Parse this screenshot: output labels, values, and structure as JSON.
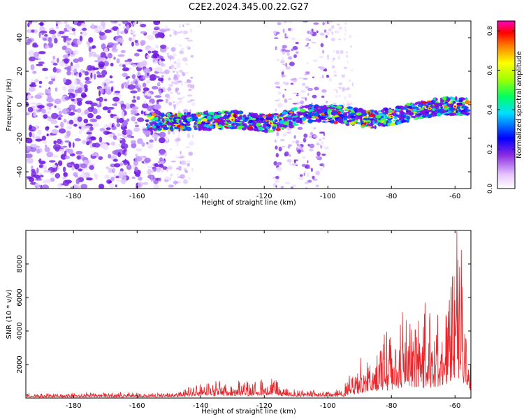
{
  "title": "C2E2.2024.345.00.22.G27",
  "chart_data": [
    {
      "type": "heatmap",
      "xlabel": "Height of straight line (km)",
      "ylabel": "Frequency (Hz)",
      "xlim": [
        -195,
        -55
      ],
      "ylim": [
        -50,
        50
      ],
      "xticks": [
        -180,
        -160,
        -140,
        -120,
        -100,
        -80,
        -60
      ],
      "yticks": [
        -40,
        -20,
        0,
        20,
        40
      ],
      "colorbar": {
        "label": "Normalized spectral amplitude",
        "range": [
          0,
          0.85
        ],
        "ticks": [
          0.0,
          0.2,
          0.4,
          0.6,
          0.8
        ]
      },
      "ridge": {
        "x": [
          -157,
          -145,
          -130,
          -118,
          -105,
          -95,
          -85,
          -75,
          -65,
          -56
        ],
        "y": [
          -11,
          -10,
          -9,
          -11,
          -5,
          -6,
          -9,
          -5,
          -1,
          -1
        ]
      },
      "grid": false
    },
    {
      "type": "line",
      "xlabel": "Height of straight line (km)",
      "ylabel": "SNR (10 * v/v)",
      "xlim": [
        -195,
        -55
      ],
      "ylim": [
        0,
        10000
      ],
      "xticks": [
        -180,
        -160,
        -140,
        -120,
        -100,
        -80,
        -60
      ],
      "yticks": [
        2000,
        4000,
        6000,
        8000
      ],
      "color": "#e8262b",
      "envelope": {
        "x": [
          -195,
          -150,
          -145,
          -140,
          -130,
          -122,
          -117,
          -115,
          -110,
          -100,
          -95,
          -90,
          -85,
          -80,
          -75,
          -70,
          -65,
          -62,
          -60,
          -58,
          -56,
          -55
        ],
        "y": [
          250,
          300,
          500,
          800,
          1000,
          900,
          1400,
          600,
          450,
          400,
          700,
          2200,
          3200,
          3700,
          5200,
          4700,
          5500,
          7000,
          9900,
          8800,
          3800,
          3200
        ]
      },
      "grid": false
    }
  ]
}
